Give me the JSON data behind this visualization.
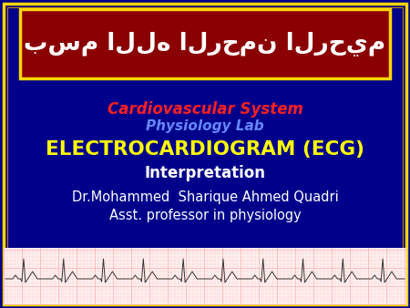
{
  "bg_color": "#00008B",
  "outer_border_color": "#FFD700",
  "inner_border_color": "#B8860B",
  "arabic_box_color": "#8B0000",
  "arabic_box_border": "#FFD700",
  "arabic_text": "بسم الله الرحمن الرحيم",
  "arabic_text_color": "#FFFFFF",
  "line1": "Cardiovascular System",
  "line1_color": "#FF2020",
  "line2": "Physiology Lab",
  "line2_color": "#6688FF",
  "line3": "ELECTROCARDIOGRAM (ECG)",
  "line3_color": "#FFFF00",
  "line4": "Interpretation",
  "line4_color": "#FFFFFF",
  "line5": "Dr.Mohammed  Sharique Ahmed Quadri",
  "line5_color": "#FFFFFF",
  "line6": "Asst. professor in physiology",
  "line6_color": "#FFFFFF",
  "ecg_strip_bg": "#FFF0F0",
  "ecg_grid_minor": "#FFAAAA",
  "ecg_grid_major": "#FF6666",
  "ecg_line_color": "#333333",
  "fig_width": 4.5,
  "fig_height": 3.38,
  "dpi": 100
}
